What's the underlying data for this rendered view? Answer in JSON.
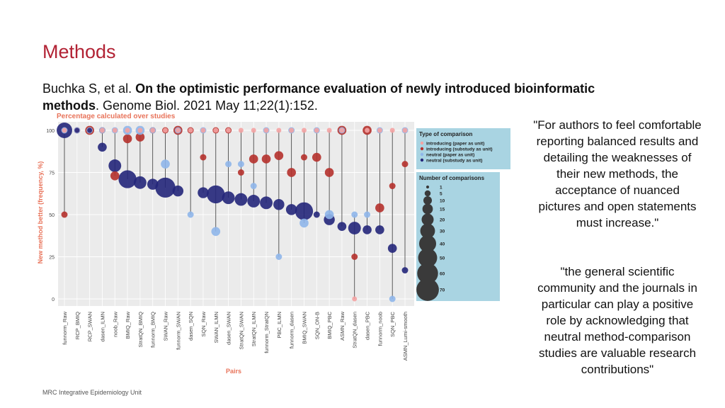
{
  "slide": {
    "title": "Methods",
    "citation_authors": "Buchka S, et al. ",
    "citation_title": "On the optimistic performance evaluation of newly introduced bioinformatic methods",
    "citation_journal": ". Genome Biol. 2021 May 11;22(1):152.",
    "quote1": "\"For authors to feel comfortable reporting balanced results and detailing the weaknesses of their new methods, the acceptance of nuanced pictures and open statements must increase.\"",
    "quote2": "\"the general scientific community and the journals in particular can play a positive role by acknowledging that neutral method-comparison studies are valuable research contributions\"",
    "footer": "MRC Integrative Epidemiology Unit"
  },
  "colors": {
    "introducing_paper": "#f4a3a3",
    "introducing_substudy": "#b5312c",
    "neutral_paper": "#8fb6ea",
    "neutral_substudy": "#24267a",
    "legend_bg": "#a9d4e2",
    "axis_text": "#e8735a"
  },
  "chart_data": {
    "type": "scatter",
    "title": "Percentage calculated over studies",
    "xlabel": "Pairs",
    "ylabel": "New method better (frequency, %)",
    "ylim": [
      0,
      100
    ],
    "yticks": [
      0,
      25,
      50,
      75,
      100
    ],
    "categories": [
      "funnorm_Raw",
      "RCP_BMIQ",
      "RCP_SWAN",
      "dasen_ILMN",
      "noob_Raw",
      "BMIQ_Raw",
      "StratQN_BMIQ",
      "funnorm_BMIQ",
      "SWAN_Raw",
      "funnorm_SWAN",
      "dasen_SQN",
      "SQN_Raw",
      "SWAN_ILMN",
      "dasen_SWAN",
      "StratQN_SWAN",
      "StratQN_ILMN",
      "funnorm_StratQN",
      "PBC_ILMN",
      "funnorm_dasen",
      "BMIQ_SWAN",
      "SQN_ON-B",
      "BMIQ_PBC",
      "ASMN_Raw",
      "StratQN_dasen",
      "dasen_PBC",
      "funnorm_noob",
      "SQN_PBC",
      "ASMN_Lumi-smooth"
    ],
    "legend_type_title": "Type of comparison",
    "legend_type_items": [
      "introducing (paper as unit)",
      "introducing (substudy as unit)",
      "neutral (paper as unit)",
      "neutral (substudy as unit)"
    ],
    "legend_size_title": "Number of comparisons",
    "legend_size_items": [
      1,
      5,
      10,
      15,
      20,
      30,
      40,
      50,
      60,
      70
    ],
    "series": [
      {
        "type": "introducing_paper",
        "values": [
          100,
          100,
          100,
          100,
          100,
          100,
          100,
          100,
          100,
          100,
          100,
          100,
          100,
          100,
          100,
          100,
          100,
          100,
          100,
          100,
          100,
          100,
          100,
          0,
          100,
          100,
          100,
          100
        ],
        "counts": [
          3,
          3,
          3,
          3,
          3,
          3,
          3,
          3,
          3,
          3,
          3,
          3,
          3,
          3,
          3,
          3,
          3,
          3,
          3,
          3,
          3,
          3,
          3,
          3,
          3,
          3,
          3,
          3
        ]
      },
      {
        "type": "introducing_substudy",
        "values": [
          50,
          100,
          100,
          100,
          73,
          95,
          96,
          100,
          100,
          100,
          100,
          84,
          100,
          100,
          75,
          83,
          83,
          85,
          75,
          84,
          84,
          75,
          100,
          25,
          100,
          54,
          67,
          80
        ],
        "counts": [
          5,
          5,
          10,
          5,
          10,
          10,
          10,
          5,
          5,
          10,
          5,
          5,
          5,
          5,
          5,
          10,
          10,
          10,
          10,
          5,
          10,
          10,
          10,
          5,
          10,
          10,
          5,
          5
        ]
      },
      {
        "type": "neutral_paper",
        "values": [
          100,
          100,
          100,
          100,
          100,
          100,
          100,
          100,
          80,
          100,
          50,
          100,
          40,
          80,
          80,
          67,
          100,
          25,
          100,
          45,
          100,
          50,
          100,
          50,
          50,
          100,
          0,
          100
        ],
        "counts": [
          5,
          5,
          5,
          5,
          5,
          10,
          10,
          5,
          10,
          5,
          5,
          5,
          10,
          5,
          5,
          5,
          5,
          5,
          5,
          10,
          5,
          10,
          5,
          5,
          5,
          5,
          5,
          5
        ]
      },
      {
        "type": "neutral_substudy",
        "values": [
          100,
          100,
          100,
          90,
          79,
          71,
          69,
          68,
          66,
          64,
          null,
          63,
          62,
          60,
          59,
          58,
          57,
          56,
          53,
          52,
          50,
          47,
          43,
          42,
          41,
          41,
          30,
          17
        ],
        "counts": [
          30,
          3,
          3,
          10,
          20,
          40,
          20,
          15,
          50,
          15,
          null,
          15,
          40,
          20,
          20,
          20,
          20,
          15,
          15,
          40,
          5,
          15,
          10,
          20,
          10,
          10,
          10,
          5
        ]
      }
    ]
  }
}
